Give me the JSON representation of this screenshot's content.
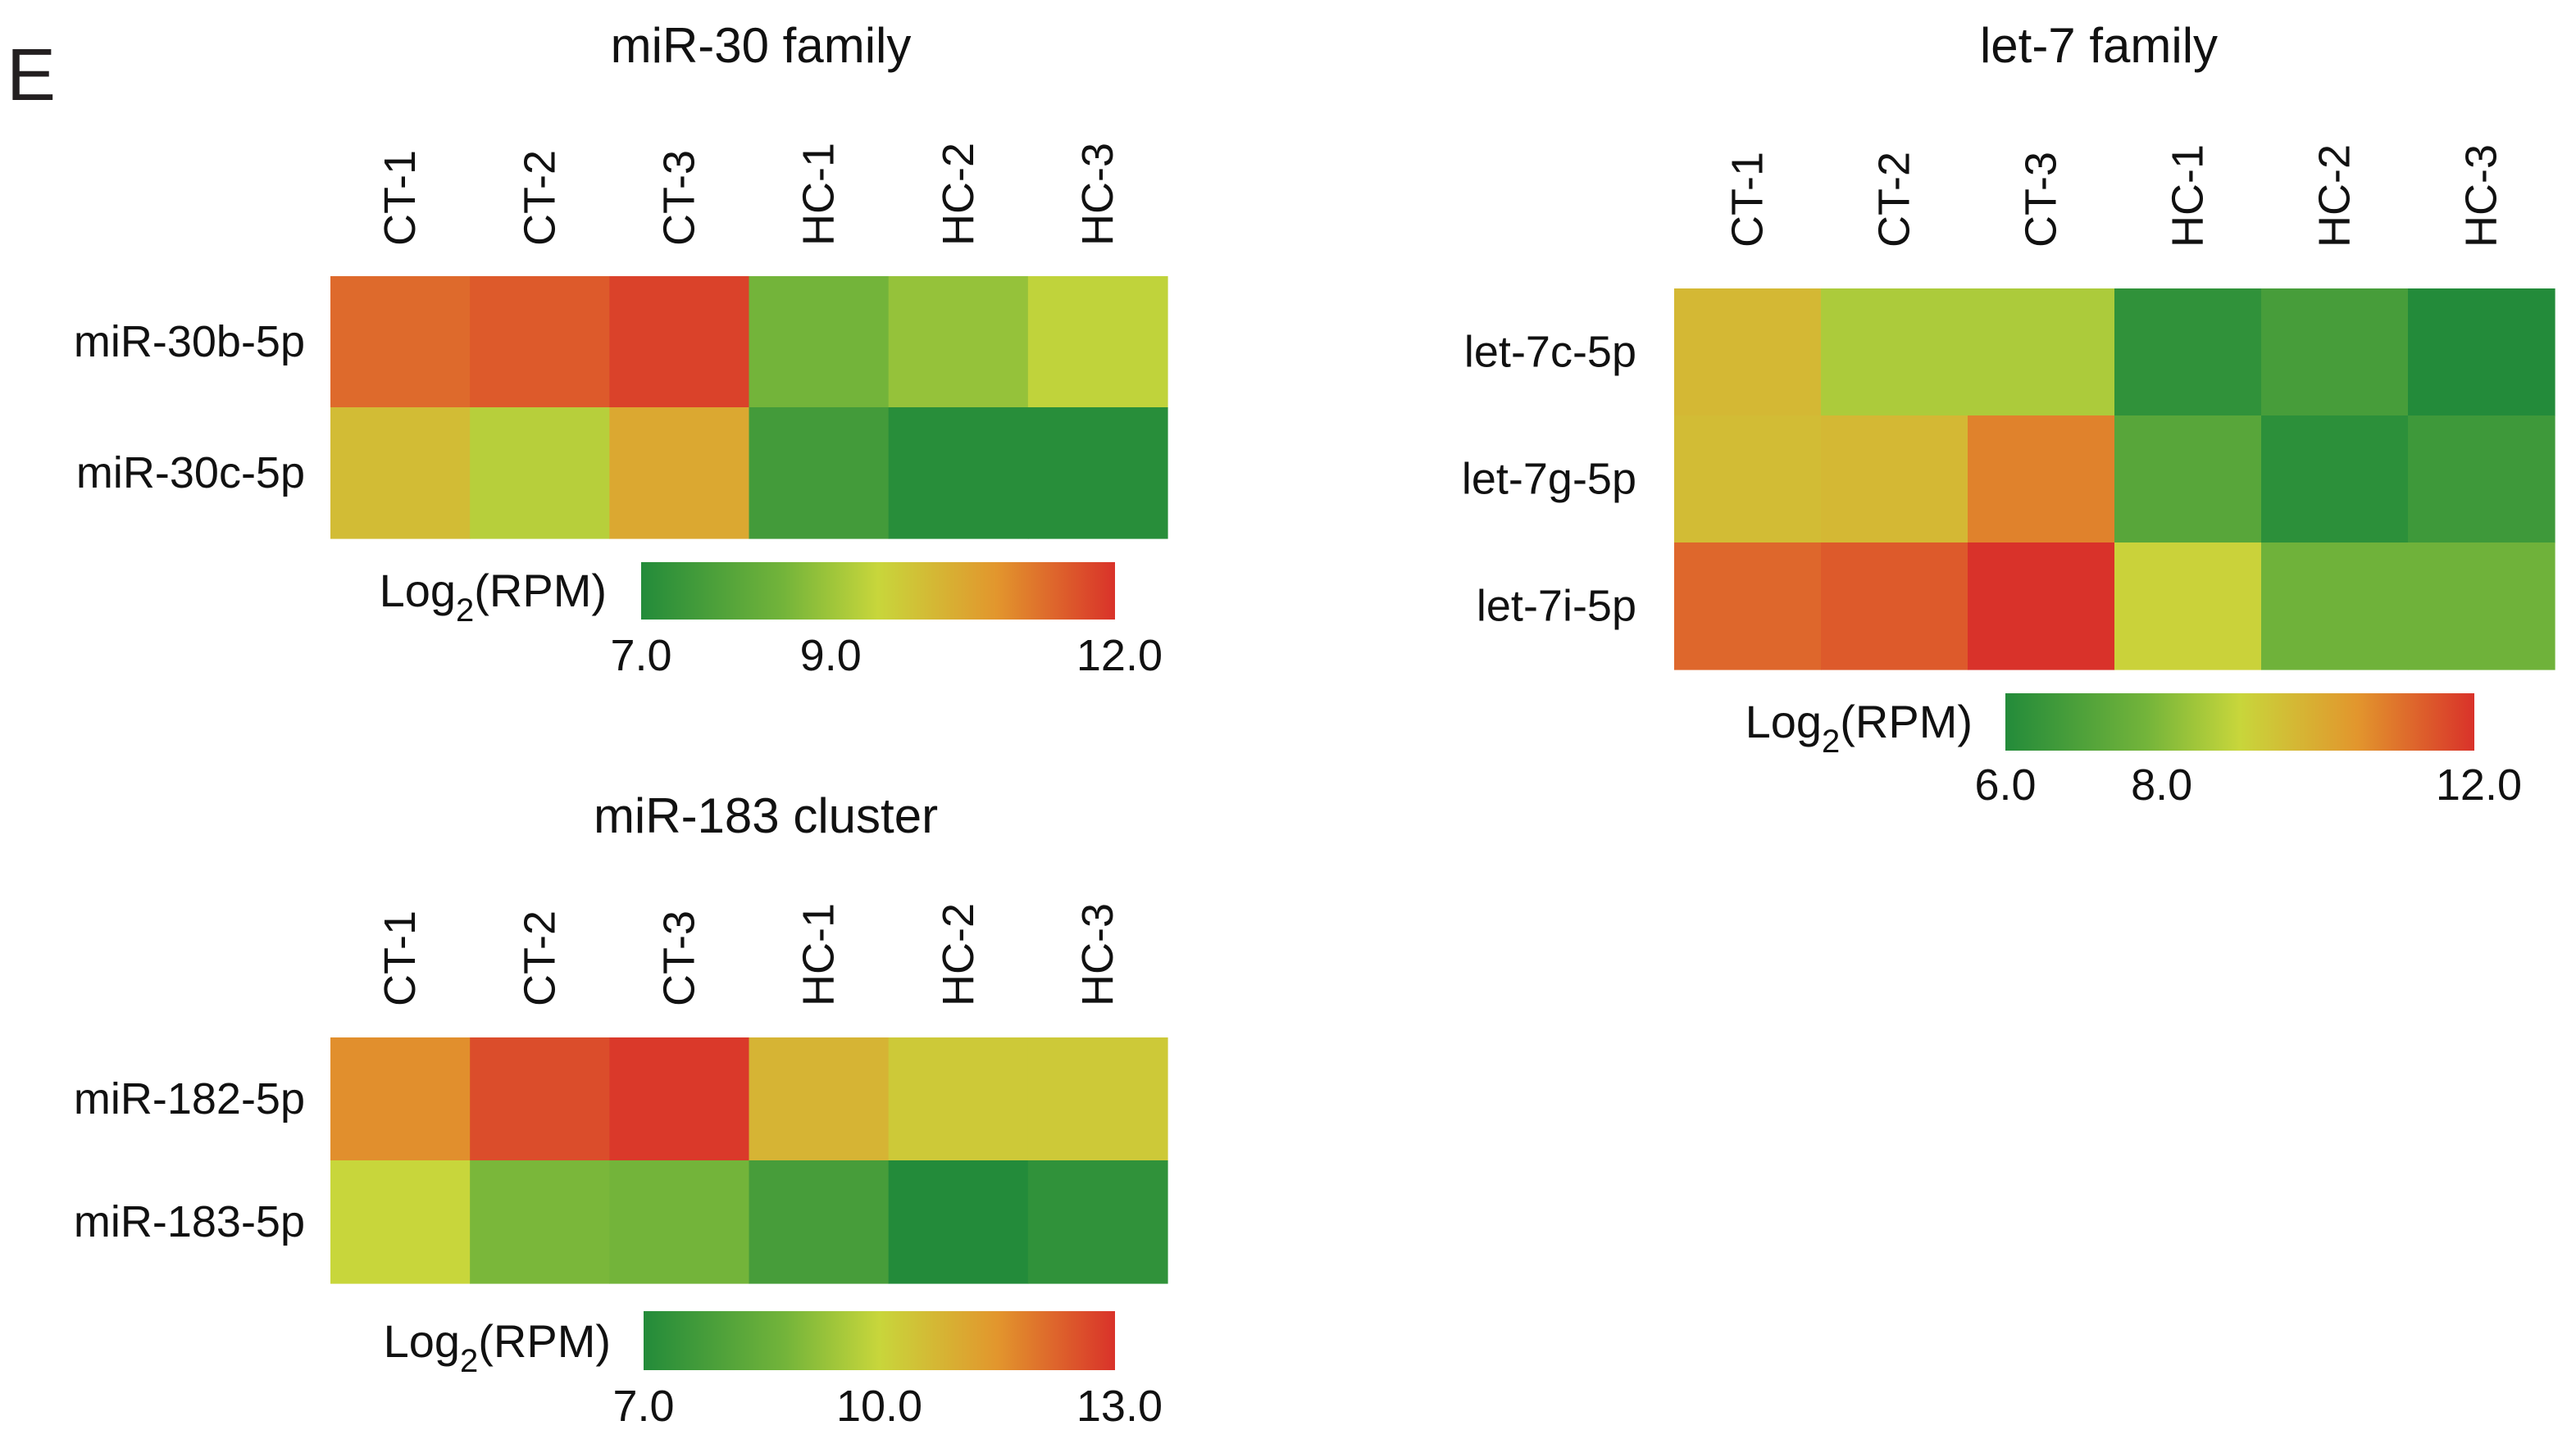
{
  "panel_label": "E",
  "colorscale": {
    "stops": [
      "#238b3a",
      "#73b43a",
      "#c8d63b",
      "#e2962d",
      "#d9322a"
    ],
    "stop_positions": [
      0,
      0.3,
      0.5,
      0.75,
      1
    ]
  },
  "chart_data": [
    {
      "type": "heatmap",
      "id": "mir30",
      "title": "miR-30 family",
      "columns": [
        "CT-1",
        "CT-2",
        "CT-3",
        "HC-1",
        "HC-2",
        "HC-3"
      ],
      "rows": [
        "miR-30b-5p",
        "miR-30c-5p"
      ],
      "values": [
        [
          11.3,
          11.5,
          11.8,
          8.5,
          8.9,
          9.4
        ],
        [
          10.0,
          9.3,
          10.4,
          7.6,
          7.1,
          7.1
        ]
      ],
      "legend": {
        "label_main": "Log",
        "label_sub": "2",
        "label_rest": "(RPM)",
        "min": 7.0,
        "mid": 9.0,
        "max": 12.0,
        "ticks": [
          "7.0",
          "9.0",
          "12.0"
        ]
      }
    },
    {
      "type": "heatmap",
      "id": "let7",
      "title": "let-7 family",
      "columns": [
        "CT-1",
        "CT-2",
        "CT-3",
        "HC-1",
        "HC-2",
        "HC-3"
      ],
      "rows": [
        "let-7c-5p",
        "let-7g-5p",
        "let-7i-5p"
      ],
      "values": [
        [
          9.7,
          8.6,
          8.6,
          6.3,
          6.8,
          6.0
        ],
        [
          9.6,
          9.7,
          10.8,
          7.2,
          6.2,
          6.6
        ],
        [
          11.2,
          11.4,
          12.0,
          9.1,
          7.7,
          7.7
        ]
      ],
      "legend": {
        "label_main": "Log",
        "label_sub": "2",
        "label_rest": "(RPM)",
        "min": 6.0,
        "mid": 8.0,
        "max": 12.0,
        "ticks": [
          "6.0",
          "8.0",
          "12.0"
        ]
      }
    },
    {
      "type": "heatmap",
      "id": "mir183",
      "title": "miR-183 cluster",
      "columns": [
        "CT-1",
        "CT-2",
        "CT-3",
        "HC-1",
        "HC-2",
        "HC-3"
      ],
      "rows": [
        "miR-182-5p",
        "miR-183-5p"
      ],
      "values": [
        [
          11.6,
          12.6,
          12.9,
          10.8,
          10.3,
          10.3
        ],
        [
          10.0,
          8.9,
          8.8,
          7.8,
          7.0,
          7.3
        ]
      ],
      "legend": {
        "label_main": "Log",
        "label_sub": "2",
        "label_rest": "(RPM)",
        "min": 7.0,
        "mid": 10.0,
        "max": 13.0,
        "ticks": [
          "7.0",
          "10.0",
          "13.0"
        ]
      }
    }
  ]
}
